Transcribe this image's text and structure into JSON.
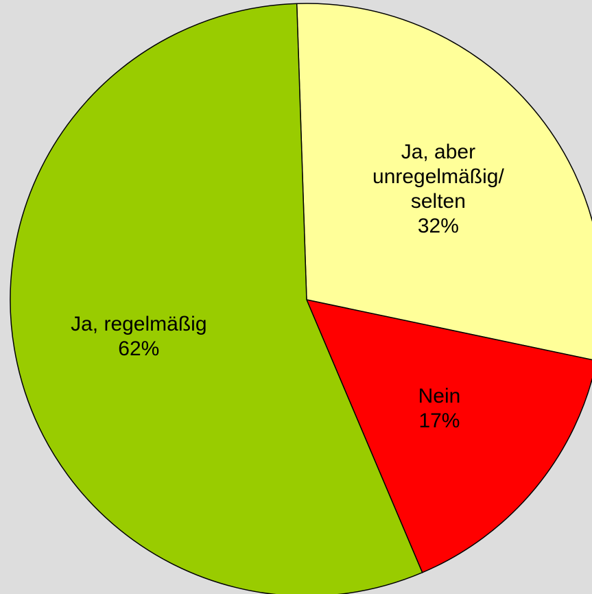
{
  "chart_data": {
    "type": "pie",
    "categories": [
      "Ja, aber unregelmäßig/ selten",
      "Nein",
      "Ja, regelmäßig"
    ],
    "values": [
      32,
      17,
      62
    ],
    "value_labels": [
      "32%",
      "17%",
      "62%"
    ],
    "colors": [
      "#ffff99",
      "#ff0000",
      "#99cc00"
    ]
  }
}
